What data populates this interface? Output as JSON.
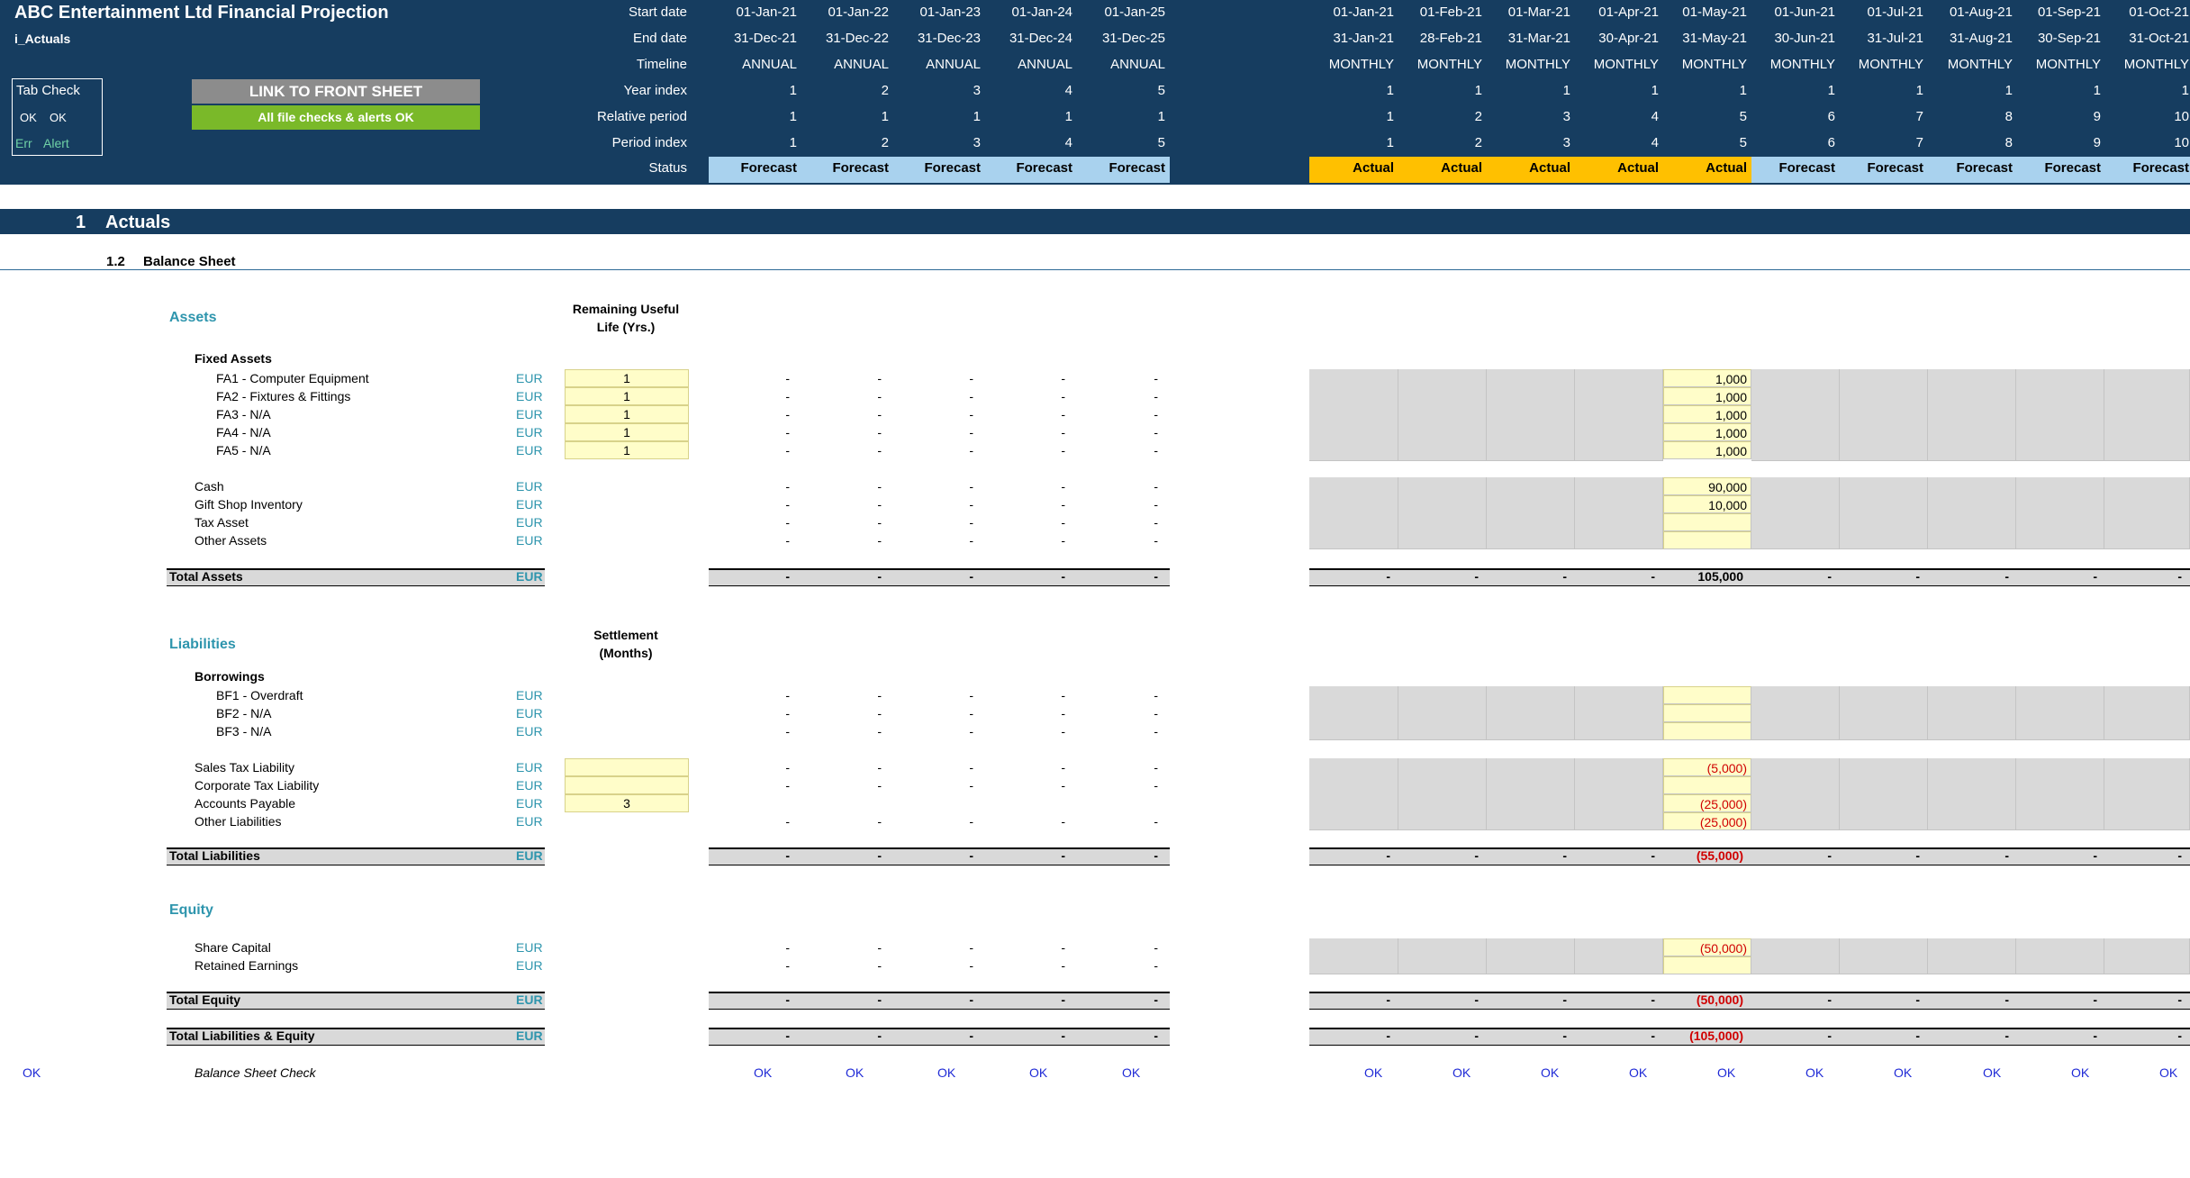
{
  "header": {
    "title": "ABC Entertainment Ltd Financial Projection",
    "sheet_name": "i_Actuals",
    "tab_check": {
      "label": "Tab Check",
      "ok1": "OK",
      "ok2": "OK",
      "err": "Err",
      "alert": "Alert"
    },
    "link_button": "LINK TO FRONT SHEET",
    "checks_status": "All file checks & alerts OK",
    "row_labels": [
      "Start date",
      "End date",
      "Timeline",
      "Year index",
      "Relative period",
      "Period index",
      "Status"
    ]
  },
  "annual_cols": [
    {
      "start": "01-Jan-21",
      "end": "31-Dec-21",
      "timeline": "ANNUAL",
      "year": "1",
      "rel": "1",
      "period": "1",
      "status": "Forecast"
    },
    {
      "start": "01-Jan-22",
      "end": "31-Dec-22",
      "timeline": "ANNUAL",
      "year": "2",
      "rel": "1",
      "period": "2",
      "status": "Forecast"
    },
    {
      "start": "01-Jan-23",
      "end": "31-Dec-23",
      "timeline": "ANNUAL",
      "year": "3",
      "rel": "1",
      "period": "3",
      "status": "Forecast"
    },
    {
      "start": "01-Jan-24",
      "end": "31-Dec-24",
      "timeline": "ANNUAL",
      "year": "4",
      "rel": "1",
      "period": "4",
      "status": "Forecast"
    },
    {
      "start": "01-Jan-25",
      "end": "31-Dec-25",
      "timeline": "ANNUAL",
      "year": "5",
      "rel": "1",
      "period": "5",
      "status": "Forecast"
    }
  ],
  "monthly_cols": [
    {
      "start": "01-Jan-21",
      "end": "31-Jan-21",
      "timeline": "MONTHLY",
      "year": "1",
      "rel": "1",
      "period": "1",
      "status": "Actual"
    },
    {
      "start": "01-Feb-21",
      "end": "28-Feb-21",
      "timeline": "MONTHLY",
      "year": "1",
      "rel": "2",
      "period": "2",
      "status": "Actual"
    },
    {
      "start": "01-Mar-21",
      "end": "31-Mar-21",
      "timeline": "MONTHLY",
      "year": "1",
      "rel": "3",
      "period": "3",
      "status": "Actual"
    },
    {
      "start": "01-Apr-21",
      "end": "30-Apr-21",
      "timeline": "MONTHLY",
      "year": "1",
      "rel": "4",
      "period": "4",
      "status": "Actual"
    },
    {
      "start": "01-May-21",
      "end": "31-May-21",
      "timeline": "MONTHLY",
      "year": "1",
      "rel": "5",
      "period": "5",
      "status": "Actual"
    },
    {
      "start": "01-Jun-21",
      "end": "30-Jun-21",
      "timeline": "MONTHLY",
      "year": "1",
      "rel": "6",
      "period": "6",
      "status": "Forecast"
    },
    {
      "start": "01-Jul-21",
      "end": "31-Jul-21",
      "timeline": "MONTHLY",
      "year": "1",
      "rel": "7",
      "period": "7",
      "status": "Forecast"
    },
    {
      "start": "01-Aug-21",
      "end": "31-Aug-21",
      "timeline": "MONTHLY",
      "year": "1",
      "rel": "8",
      "period": "8",
      "status": "Forecast"
    },
    {
      "start": "01-Sep-21",
      "end": "30-Sep-21",
      "timeline": "MONTHLY",
      "year": "1",
      "rel": "9",
      "period": "9",
      "status": "Forecast"
    },
    {
      "start": "01-Oct-21",
      "end": "31-Oct-21",
      "timeline": "MONTHLY",
      "year": "1",
      "rel": "10",
      "period": "10",
      "status": "Forecast"
    }
  ],
  "section": {
    "number": "1",
    "title": "Actuals",
    "sub_number": "1.2",
    "sub_title": "Balance Sheet"
  },
  "assets": {
    "heading": "Assets",
    "col_header": [
      "Remaining Useful",
      "Life (Yrs.)"
    ],
    "fixed_heading": "Fixed Assets",
    "rows": [
      {
        "label": "FA1 - Computer Equipment",
        "unit": "EUR",
        "input": "1",
        "may": "1,000"
      },
      {
        "label": "FA2 - Fixtures & Fittings",
        "unit": "EUR",
        "input": "1",
        "may": "1,000"
      },
      {
        "label": "FA3 - N/A",
        "unit": "EUR",
        "input": "1",
        "may": "1,000"
      },
      {
        "label": "FA4 - N/A",
        "unit": "EUR",
        "input": "1",
        "may": "1,000"
      },
      {
        "label": "FA5 - N/A",
        "unit": "EUR",
        "input": "1",
        "may": "1,000"
      }
    ],
    "other_rows": [
      {
        "label": "Cash",
        "unit": "EUR",
        "may": "90,000"
      },
      {
        "label": "Gift Shop Inventory",
        "unit": "EUR",
        "may": "10,000"
      },
      {
        "label": "Tax Asset",
        "unit": "EUR",
        "may": ""
      },
      {
        "label": "Other Assets",
        "unit": "EUR",
        "may": ""
      }
    ],
    "total": {
      "label": "Total Assets",
      "unit": "EUR",
      "may": "105,000"
    }
  },
  "liabilities": {
    "heading": "Liabilities",
    "col_header": [
      "Settlement",
      "(Months)"
    ],
    "borrow_heading": "Borrowings",
    "borrow_rows": [
      {
        "label": "BF1 - Overdraft",
        "unit": "EUR",
        "may": ""
      },
      {
        "label": "BF2 - N/A",
        "unit": "EUR",
        "may": ""
      },
      {
        "label": "BF3 - N/A",
        "unit": "EUR",
        "may": ""
      }
    ],
    "other_rows": [
      {
        "label": "Sales Tax Liability",
        "unit": "EUR",
        "input": "",
        "may": "(5,000)"
      },
      {
        "label": "Corporate Tax Liability",
        "unit": "EUR",
        "input": "",
        "may": ""
      },
      {
        "label": "Accounts Payable",
        "unit": "EUR",
        "input": "3",
        "may": "(25,000)"
      },
      {
        "label": "Other Liabilities",
        "unit": "EUR",
        "may": "(25,000)"
      }
    ],
    "total": {
      "label": "Total Liabilities",
      "unit": "EUR",
      "may": "(55,000)"
    }
  },
  "equity": {
    "heading": "Equity",
    "rows": [
      {
        "label": "Share Capital",
        "unit": "EUR",
        "may": "(50,000)"
      },
      {
        "label": "Retained Earnings",
        "unit": "EUR",
        "may": ""
      }
    ],
    "total": {
      "label": "Total Equity",
      "unit": "EUR",
      "may": "(50,000)"
    },
    "total_le": {
      "label": "Total Liabilities & Equity",
      "unit": "EUR",
      "may": "(105,000)"
    }
  },
  "check": {
    "left_status": "OK",
    "label": "Balance Sheet Check",
    "cell": "OK"
  },
  "dash": "-",
  "colors": {
    "header_bg": "#163d60",
    "forecast": "#a9d2ee",
    "actual": "#ffc000",
    "link_btn": "#8c8c8c",
    "ok_btn": "#7ab929",
    "input_yellow": "#fffdc9",
    "teal": "#2e95ad"
  }
}
